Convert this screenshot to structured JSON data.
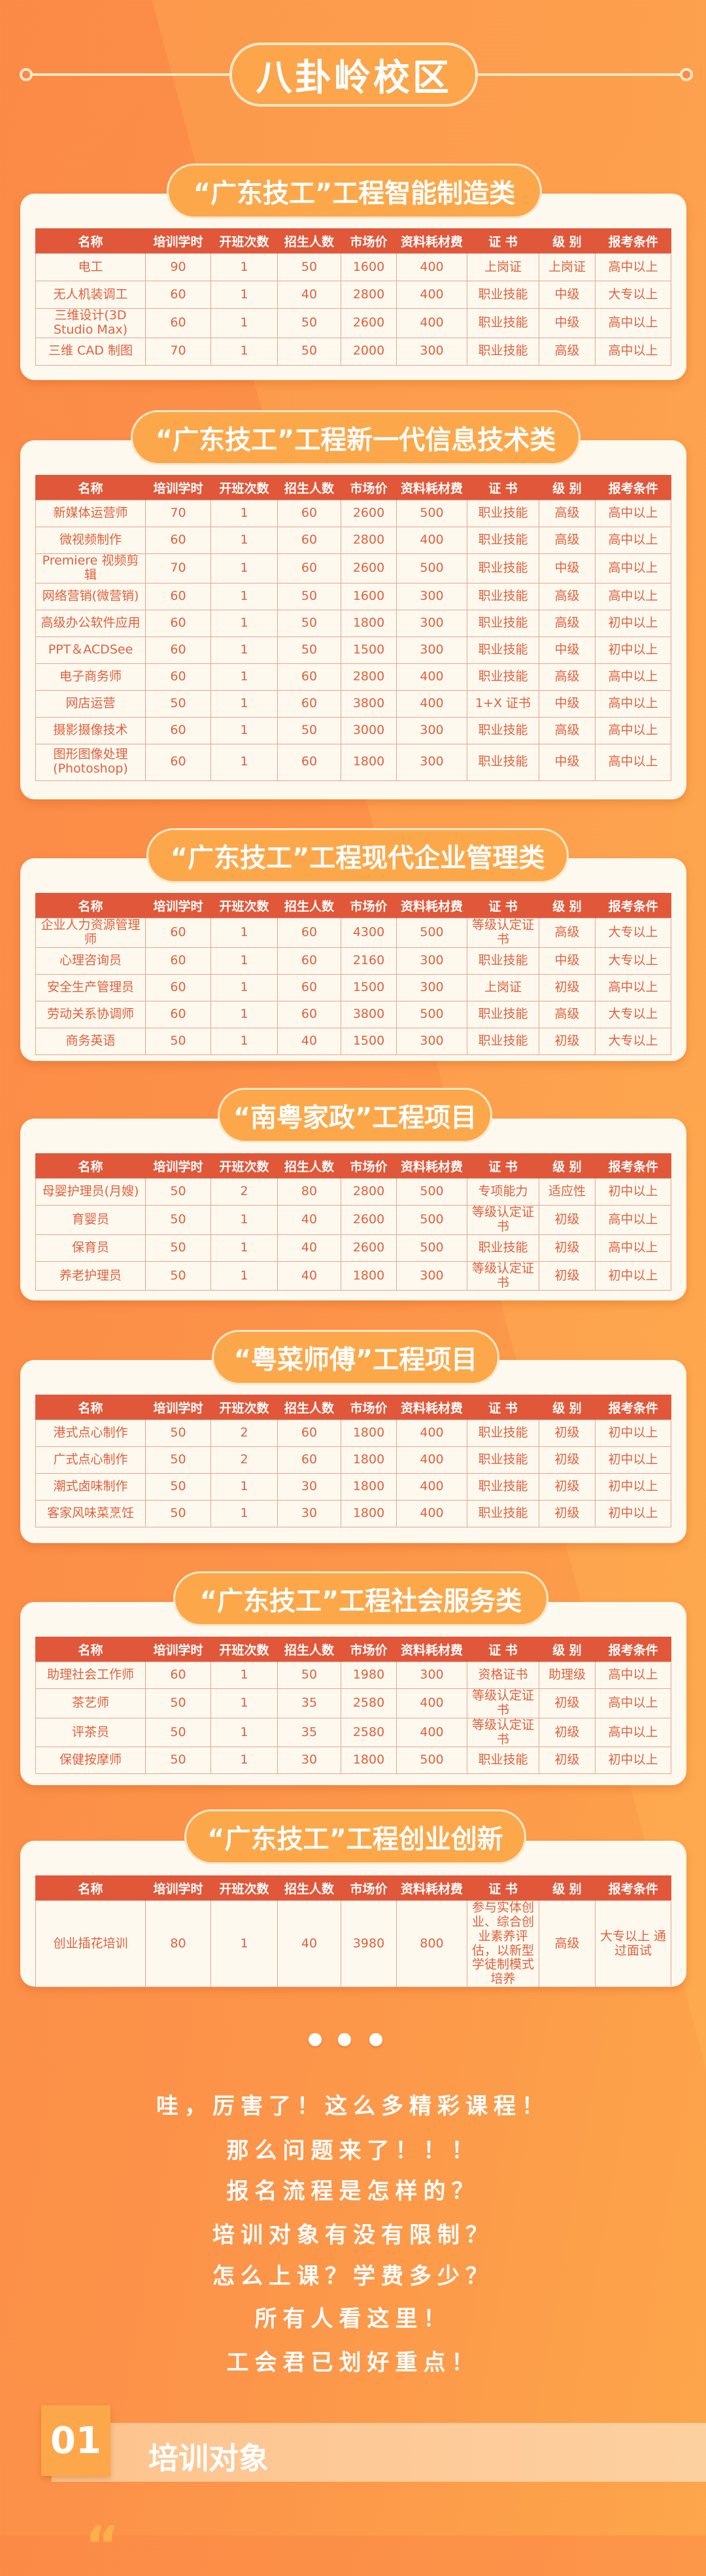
{
  "campus": {
    "title": "八卦岭校区"
  },
  "columns": [
    "名称",
    "培训学时",
    "开班次数",
    "招生人数",
    "市场价",
    "资料耗材费",
    "证 书",
    "级 别",
    "报考条件"
  ],
  "sections": [
    {
      "title": "“广东技工”工程智能制造类",
      "rows": [
        [
          "电工",
          "90",
          "1",
          "50",
          "1600",
          "400",
          "上岗证",
          "上岗证",
          "高中以上"
        ],
        [
          "无人机装调工",
          "60",
          "1",
          "40",
          "2800",
          "400",
          "职业技能",
          "中级",
          "大专以上"
        ],
        [
          "三维设计(3D Studio Max)",
          "60",
          "1",
          "50",
          "2600",
          "400",
          "职业技能",
          "中级",
          "高中以上"
        ],
        [
          "三维 CAD 制图",
          "70",
          "1",
          "50",
          "2000",
          "300",
          "职业技能",
          "高级",
          "高中以上"
        ]
      ]
    },
    {
      "title": "“广东技工”工程新一代信息技术类",
      "rows": [
        [
          "新媒体运营师",
          "70",
          "1",
          "60",
          "2600",
          "500",
          "职业技能",
          "高级",
          "高中以上"
        ],
        [
          "微视频制作",
          "60",
          "1",
          "60",
          "2800",
          "400",
          "职业技能",
          "高级",
          "高中以上"
        ],
        [
          "Premiere 视频剪辑",
          "70",
          "1",
          "60",
          "2600",
          "500",
          "职业技能",
          "中级",
          "高中以上"
        ],
        [
          "网络营销(微营销)",
          "60",
          "1",
          "50",
          "1600",
          "300",
          "职业技能",
          "高级",
          "高中以上"
        ],
        [
          "高级办公软件应用",
          "60",
          "1",
          "50",
          "1800",
          "300",
          "职业技能",
          "高级",
          "初中以上"
        ],
        [
          "PPT＆ACDSee",
          "60",
          "1",
          "50",
          "1500",
          "300",
          "职业技能",
          "中级",
          "初中以上"
        ],
        [
          "电子商务师",
          "60",
          "1",
          "60",
          "2800",
          "400",
          "职业技能",
          "高级",
          "高中以上"
        ],
        [
          "网店运营",
          "50",
          "1",
          "60",
          "3800",
          "400",
          "1+X 证书",
          "中级",
          "高中以上"
        ],
        [
          "摄影摄像技术",
          "60",
          "1",
          "50",
          "3000",
          "300",
          "职业技能",
          "高级",
          "高中以上"
        ],
        [
          "图形图像处理 (Photoshop)",
          "60",
          "1",
          "60",
          "1800",
          "300",
          "职业技能",
          "中级",
          "高中以上"
        ]
      ]
    },
    {
      "title": "“广东技工”工程现代企业管理类",
      "rows": [
        [
          "企业人力资源管理师",
          "60",
          "1",
          "60",
          "4300",
          "500",
          "等级认定证书",
          "高级",
          "大专以上"
        ],
        [
          "心理咨询员",
          "60",
          "1",
          "60",
          "2160",
          "300",
          "职业技能",
          "中级",
          "大专以上"
        ],
        [
          "安全生产管理员",
          "60",
          "1",
          "60",
          "1500",
          "300",
          "上岗证",
          "初级",
          "高中以上"
        ],
        [
          "劳动关系协调师",
          "60",
          "1",
          "60",
          "3800",
          "500",
          "职业技能",
          "高级",
          "大专以上"
        ],
        [
          "商务英语",
          "50",
          "1",
          "40",
          "1500",
          "300",
          "职业技能",
          "初级",
          "大专以上"
        ]
      ]
    },
    {
      "title": "“南粤家政”工程项目",
      "rows": [
        [
          "母婴护理员(月嫂)",
          "50",
          "2",
          "80",
          "2800",
          "500",
          "专项能力",
          "适应性",
          "初中以上"
        ],
        [
          "育婴员",
          "50",
          "1",
          "40",
          "2600",
          "500",
          "等级认定证书",
          "初级",
          "高中以上"
        ],
        [
          "保育员",
          "50",
          "1",
          "40",
          "2600",
          "500",
          "职业技能",
          "初级",
          "高中以上"
        ],
        [
          "养老护理员",
          "50",
          "1",
          "40",
          "1800",
          "300",
          "等级认定证书",
          "初级",
          "初中以上"
        ]
      ]
    },
    {
      "title": "“粤菜师傅”工程项目",
      "rows": [
        [
          "港式点心制作",
          "50",
          "2",
          "60",
          "1800",
          "400",
          "职业技能",
          "初级",
          "初中以上"
        ],
        [
          "广式点心制作",
          "50",
          "2",
          "60",
          "1800",
          "400",
          "职业技能",
          "初级",
          "初中以上"
        ],
        [
          "潮式卤味制作",
          "50",
          "1",
          "30",
          "1800",
          "400",
          "职业技能",
          "初级",
          "初中以上"
        ],
        [
          "客家风味菜烹饪",
          "50",
          "1",
          "30",
          "1800",
          "400",
          "职业技能",
          "初级",
          "初中以上"
        ]
      ]
    },
    {
      "title": "“广东技工”工程社会服务类",
      "rows": [
        [
          "助理社会工作师",
          "60",
          "1",
          "50",
          "1980",
          "300",
          "资格证书",
          "助理级",
          "高中以上"
        ],
        [
          "茶艺师",
          "50",
          "1",
          "35",
          "2580",
          "400",
          "等级认定证书",
          "初级",
          "高中以上"
        ],
        [
          "评茶员",
          "50",
          "1",
          "35",
          "2580",
          "400",
          "等级认定证书",
          "初级",
          "高中以上"
        ],
        [
          "保健按摩师",
          "50",
          "1",
          "30",
          "1800",
          "500",
          "职业技能",
          "初级",
          "初中以上"
        ]
      ]
    },
    {
      "title": "“广东技工”工程创业创新",
      "rows": [
        [
          "创业插花培训",
          "80",
          "1",
          "40",
          "3980",
          "800",
          "参与实体创业、综合创业素养评估，以新型学徒制模式培养",
          "高级",
          "大专以上 通过面试"
        ]
      ]
    }
  ],
  "promo_lines": [
    "哇，厉害了！这么多精彩课程！",
    "那么问题来了！！！",
    "报名流程是怎样的？",
    "培训对象有没有限制？",
    "怎么上课？学费多少？",
    "所有人看这里！",
    "工会君已划好重点！"
  ],
  "next_section": {
    "number": "01",
    "title": "培训对象"
  },
  "colors": {
    "background": "#fb8a47",
    "pill": "#fca84a",
    "table_header": "#e1573a",
    "cell_text": "#e2603c",
    "card": "#fdf9ef"
  }
}
